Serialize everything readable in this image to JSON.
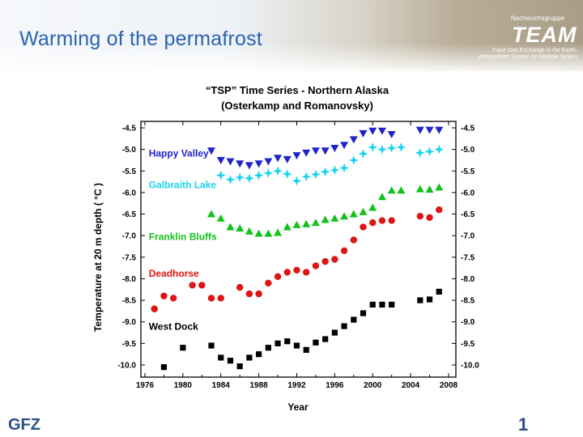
{
  "slide": {
    "title": "Warming of the permafrost",
    "group_label": "Nachwuchsgruppe",
    "logo": "TEAM",
    "logo_subtitle": "Trace Gas Exchange in the Earth-\nAtmosphere System on Multiple Scales",
    "footer_left": "GFZ",
    "footer_right": "1"
  },
  "colors": {
    "title": "#2a63b4",
    "happy_valley": "#1f24c8",
    "galbraith_lake": "#19d4f0",
    "franklin_bluffs": "#13c21a",
    "deadhorse": "#dc1515",
    "west_dock": "#000000"
  },
  "chart_data": {
    "type": "scatter",
    "title": "“TSP” Time Series - Northern Alaska",
    "subtitle": "(Osterkamp and Romanovsky)",
    "xlabel": "Year",
    "ylabel": "Temperature at 20 m depth ( °C )",
    "xlim": [
      1976,
      2008
    ],
    "ylim": [
      -10.0,
      -4.5
    ],
    "x_ticks": [
      "1976",
      "1980",
      "1984",
      "1988",
      "1992",
      "1996",
      "2000",
      "2004",
      "2008"
    ],
    "y_ticks": [
      "-4.5",
      "-5.0",
      "-5.5",
      "-6.0",
      "-6.5",
      "-7.0",
      "-7.5",
      "-8.0",
      "-8.5",
      "-9.0",
      "-9.5",
      "-10.0"
    ],
    "grid": false,
    "series": [
      {
        "name": "Happy Valley",
        "marker": "triangle-down",
        "color_key": "happy_valley",
        "label_pos": [
          1976.4,
          -5.17
        ],
        "x": [
          1983,
          1984,
          1985,
          1986,
          1987,
          1988,
          1989,
          1990,
          1991,
          1992,
          1993,
          1994,
          1995,
          1996,
          1997,
          1998,
          1999,
          2000,
          2001,
          2002,
          2005,
          2006,
          2007
        ],
        "y": [
          -5.03,
          -5.25,
          -5.28,
          -5.33,
          -5.37,
          -5.33,
          -5.28,
          -5.2,
          -5.23,
          -5.14,
          -5.08,
          -5.03,
          -5.03,
          -4.97,
          -4.9,
          -4.77,
          -4.63,
          -4.57,
          -4.57,
          -4.65,
          -4.55,
          -4.55,
          -4.55
        ]
      },
      {
        "name": "Galbraith Lake",
        "marker": "star",
        "color_key": "galbraith_lake",
        "label_pos": [
          1976.4,
          -5.9
        ],
        "x": [
          1984,
          1985,
          1986,
          1987,
          1988,
          1989,
          1990,
          1991,
          1992,
          1993,
          1994,
          1995,
          1996,
          1997,
          1998,
          1999,
          2000,
          2001,
          2002,
          2003,
          2005,
          2006,
          2007
        ],
        "y": [
          -5.6,
          -5.7,
          -5.65,
          -5.67,
          -5.6,
          -5.55,
          -5.5,
          -5.57,
          -5.73,
          -5.63,
          -5.58,
          -5.52,
          -5.48,
          -5.43,
          -5.25,
          -5.1,
          -4.95,
          -5.0,
          -4.97,
          -4.95,
          -5.08,
          -5.05,
          -5.0
        ]
      },
      {
        "name": "Franklin Bluffs",
        "marker": "triangle-up",
        "color_key": "franklin_bluffs",
        "label_pos": [
          1976.4,
          -7.1
        ],
        "x": [
          1983,
          1984,
          1985,
          1986,
          1987,
          1988,
          1989,
          1990,
          1991,
          1992,
          1993,
          1994,
          1995,
          1996,
          1997,
          1998,
          1999,
          2000,
          2001,
          2002,
          2003,
          2005,
          2006,
          2007
        ],
        "y": [
          -6.5,
          -6.6,
          -6.8,
          -6.83,
          -6.9,
          -6.95,
          -6.95,
          -6.93,
          -6.8,
          -6.75,
          -6.73,
          -6.7,
          -6.63,
          -6.6,
          -6.55,
          -6.5,
          -6.45,
          -6.35,
          -6.1,
          -5.95,
          -5.95,
          -5.92,
          -5.93,
          -5.88
        ]
      },
      {
        "name": "Deadhorse",
        "marker": "circle",
        "color_key": "deadhorse",
        "label_pos": [
          1976.4,
          -7.95
        ],
        "x": [
          1977,
          1978,
          1979,
          1981,
          1982,
          1983,
          1984,
          1986,
          1987,
          1988,
          1989,
          1990,
          1991,
          1992,
          1993,
          1994,
          1995,
          1996,
          1997,
          1998,
          1999,
          2000,
          2001,
          2002,
          2005,
          2006,
          2007
        ],
        "y": [
          -8.7,
          -8.4,
          -8.45,
          -8.15,
          -8.15,
          -8.45,
          -8.45,
          -8.2,
          -8.35,
          -8.35,
          -8.1,
          -7.95,
          -7.85,
          -7.8,
          -7.85,
          -7.7,
          -7.6,
          -7.55,
          -7.35,
          -7.1,
          -6.8,
          -6.7,
          -6.65,
          -6.65,
          -6.55,
          -6.58,
          -6.4
        ]
      },
      {
        "name": "West Dock",
        "marker": "square",
        "color_key": "west_dock",
        "label_pos": [
          1976.4,
          -9.18
        ],
        "x": [
          1978,
          1980,
          1983,
          1984,
          1985,
          1986,
          1987,
          1988,
          1989,
          1990,
          1991,
          1992,
          1993,
          1994,
          1995,
          1996,
          1997,
          1998,
          1999,
          2000,
          2001,
          2002,
          2005,
          2006,
          2007
        ],
        "y": [
          -10.05,
          -9.6,
          -9.55,
          -9.83,
          -9.9,
          -10.03,
          -9.83,
          -9.75,
          -9.6,
          -9.5,
          -9.45,
          -9.55,
          -9.65,
          -9.48,
          -9.4,
          -9.25,
          -9.1,
          -8.95,
          -8.8,
          -8.6,
          -8.6,
          -8.6,
          -8.5,
          -8.48,
          -8.3
        ]
      }
    ]
  }
}
